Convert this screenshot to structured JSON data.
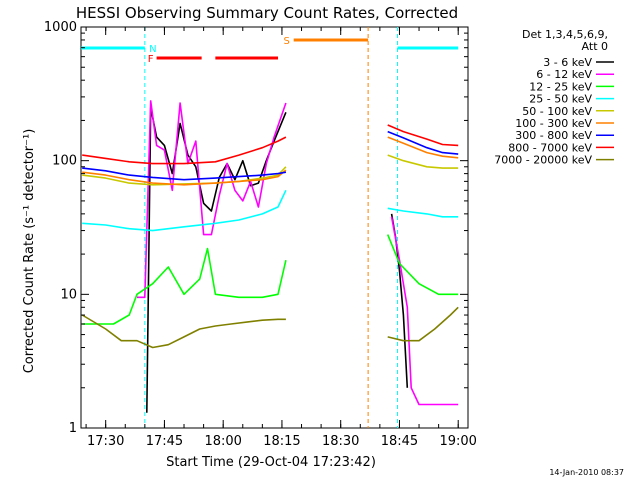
{
  "chart_data": {
    "type": "line",
    "title": "HESSI Observing Summary Count Rates, Corrected",
    "xlabel": "Start Time (29-Oct-04 17:23:42)",
    "ylabel": "Corrected Count Rate (s⁻¹ detector⁻¹)",
    "xlim": [
      "17:23:42",
      "19:02:30"
    ],
    "ylim": [
      1,
      1000
    ],
    "yscale": "log",
    "x_ticks": [
      "17:30",
      "17:45",
      "18:00",
      "18:15",
      "18:30",
      "18:45",
      "19:00"
    ],
    "y_ticks": [
      "1",
      "10",
      "100",
      "1000"
    ],
    "legend": {
      "header": [
        "Det 1,3,4,5,6,9,",
        "Att 0"
      ],
      "placement": "right"
    },
    "footer_stamp": "14-Jan-2010 08:37",
    "flags": [
      {
        "label": "F",
        "color": "#ff0000",
        "segments": [
          [
            "17:43:00",
            "17:54:30"
          ],
          [
            "17:58:00",
            "18:14:00"
          ]
        ]
      },
      {
        "label": "N",
        "color": "#00ffff",
        "segments": [
          [
            "17:23:42",
            "17:40:00"
          ],
          [
            "18:44:30",
            "19:00:00"
          ]
        ]
      },
      {
        "label": "S",
        "color": "#ff8000",
        "segments": [
          [
            "18:18:00",
            "18:37:00"
          ]
        ]
      }
    ],
    "series": [
      {
        "name": "3 - 6 keV",
        "color": "#000000",
        "points": [
          [
            "17:40:30",
            1.3
          ],
          [
            "17:41:30",
            250
          ],
          [
            "17:43",
            150
          ],
          [
            "17:45",
            130
          ],
          [
            "17:47",
            80
          ],
          [
            "17:49",
            190
          ],
          [
            "17:51",
            110
          ],
          [
            "17:53",
            90
          ],
          [
            "17:55",
            48
          ],
          [
            "17:57",
            42
          ],
          [
            "17:59",
            75
          ],
          [
            "18:01",
            95
          ],
          [
            "18:03",
            72
          ],
          [
            "18:05",
            100
          ],
          [
            "18:07",
            65
          ],
          [
            "18:09",
            68
          ],
          [
            "18:11",
            100
          ],
          [
            "18:13",
            140
          ],
          [
            "18:16",
            230
          ],
          [
            "18:43",
            40
          ],
          [
            "18:44",
            27
          ],
          [
            "18:45",
            15
          ],
          [
            "18:46",
            7
          ],
          [
            "18:47",
            2
          ]
        ]
      },
      {
        "name": "6 - 12 keV",
        "color": "#ff00ff",
        "points": [
          [
            "17:38",
            9.5
          ],
          [
            "17:40",
            9.5
          ],
          [
            "17:41:30",
            280
          ],
          [
            "17:43",
            130
          ],
          [
            "17:45",
            120
          ],
          [
            "17:47",
            60
          ],
          [
            "17:49",
            270
          ],
          [
            "17:51",
            95
          ],
          [
            "17:53",
            140
          ],
          [
            "17:55",
            28
          ],
          [
            "17:57",
            28
          ],
          [
            "17:59",
            55
          ],
          [
            "18:01",
            95
          ],
          [
            "18:03",
            60
          ],
          [
            "18:05",
            50
          ],
          [
            "18:07",
            70
          ],
          [
            "18:09",
            45
          ],
          [
            "18:11",
            95
          ],
          [
            "18:13",
            150
          ],
          [
            "18:16",
            270
          ],
          [
            "18:43",
            38
          ],
          [
            "18:45",
            18
          ],
          [
            "18:47",
            8
          ],
          [
            "18:48",
            2
          ],
          [
            "18:50",
            1.5
          ],
          [
            "18:55",
            1.5
          ],
          [
            "19:00",
            1.5
          ]
        ]
      },
      {
        "name": "12 - 25 keV",
        "color": "#00ff00",
        "points": [
          [
            "17:24",
            6
          ],
          [
            "17:32",
            6
          ],
          [
            "17:36",
            7
          ],
          [
            "17:38",
            10
          ],
          [
            "17:42",
            12
          ],
          [
            "17:46",
            16
          ],
          [
            "17:50",
            10
          ],
          [
            "17:54",
            13
          ],
          [
            "17:56",
            22
          ],
          [
            "17:58",
            10
          ],
          [
            "18:04",
            9.5
          ],
          [
            "18:10",
            9.5
          ],
          [
            "18:14",
            10
          ],
          [
            "18:16",
            18
          ],
          [
            "18:42",
            28
          ],
          [
            "18:45",
            17
          ],
          [
            "18:50",
            12
          ],
          [
            "18:55",
            10
          ],
          [
            "19:00",
            10
          ]
        ]
      },
      {
        "name": "25 - 50 keV",
        "color": "#00ffff",
        "points": [
          [
            "17:24",
            34
          ],
          [
            "17:30",
            33
          ],
          [
            "17:36",
            31
          ],
          [
            "17:42",
            30
          ],
          [
            "17:50",
            32
          ],
          [
            "17:58",
            34
          ],
          [
            "18:04",
            36
          ],
          [
            "18:10",
            40
          ],
          [
            "18:14",
            45
          ],
          [
            "18:16",
            60
          ],
          [
            "18:42",
            44
          ],
          [
            "18:46",
            42
          ],
          [
            "18:52",
            40
          ],
          [
            "18:56",
            38
          ],
          [
            "19:00",
            38
          ]
        ]
      },
      {
        "name": "50 - 100 keV",
        "color": "#c8c800",
        "points": [
          [
            "17:24",
            78
          ],
          [
            "17:30",
            74
          ],
          [
            "17:36",
            68
          ],
          [
            "17:42",
            66
          ],
          [
            "17:50",
            67
          ],
          [
            "17:58",
            68
          ],
          [
            "18:04",
            70
          ],
          [
            "18:10",
            74
          ],
          [
            "18:14",
            78
          ],
          [
            "18:16",
            90
          ],
          [
            "18:42",
            110
          ],
          [
            "18:46",
            100
          ],
          [
            "18:52",
            90
          ],
          [
            "18:56",
            88
          ],
          [
            "19:00",
            88
          ]
        ]
      },
      {
        "name": "100 - 300 keV",
        "color": "#ff8000",
        "points": [
          [
            "17:24",
            82
          ],
          [
            "17:30",
            78
          ],
          [
            "17:36",
            72
          ],
          [
            "17:42",
            68
          ],
          [
            "17:50",
            66
          ],
          [
            "17:58",
            68
          ],
          [
            "18:04",
            70
          ],
          [
            "18:10",
            72
          ],
          [
            "18:14",
            76
          ],
          [
            "18:16",
            85
          ],
          [
            "18:42",
            150
          ],
          [
            "18:46",
            135
          ],
          [
            "18:52",
            115
          ],
          [
            "18:56",
            108
          ],
          [
            "19:00",
            105
          ]
        ]
      },
      {
        "name": "300 - 800 keV",
        "color": "#0000ff",
        "points": [
          [
            "17:24",
            88
          ],
          [
            "17:30",
            84
          ],
          [
            "17:36",
            78
          ],
          [
            "17:42",
            75
          ],
          [
            "17:50",
            72
          ],
          [
            "17:58",
            74
          ],
          [
            "18:04",
            76
          ],
          [
            "18:10",
            78
          ],
          [
            "18:14",
            80
          ],
          [
            "18:16",
            82
          ],
          [
            "18:42",
            165
          ],
          [
            "18:46",
            148
          ],
          [
            "18:52",
            125
          ],
          [
            "18:56",
            115
          ],
          [
            "19:00",
            112
          ]
        ]
      },
      {
        "name": "800 - 7000 keV",
        "color": "#ff0000",
        "points": [
          [
            "17:24",
            110
          ],
          [
            "17:30",
            104
          ],
          [
            "17:36",
            98
          ],
          [
            "17:42",
            95
          ],
          [
            "17:50",
            95
          ],
          [
            "17:58",
            98
          ],
          [
            "18:04",
            110
          ],
          [
            "18:10",
            125
          ],
          [
            "18:14",
            140
          ],
          [
            "18:16",
            150
          ],
          [
            "18:42",
            185
          ],
          [
            "18:46",
            165
          ],
          [
            "18:52",
            145
          ],
          [
            "18:56",
            132
          ],
          [
            "19:00",
            130
          ]
        ]
      },
      {
        "name": "7000 - 20000 keV",
        "color": "#808000",
        "points": [
          [
            "17:24",
            7
          ],
          [
            "17:30",
            5.5
          ],
          [
            "17:34",
            4.5
          ],
          [
            "17:38",
            4.5
          ],
          [
            "17:42",
            4
          ],
          [
            "17:46",
            4.2
          ],
          [
            "17:50",
            4.8
          ],
          [
            "17:54",
            5.5
          ],
          [
            "17:58",
            5.8
          ],
          [
            "18:02",
            6
          ],
          [
            "18:06",
            6.2
          ],
          [
            "18:10",
            6.4
          ],
          [
            "18:14",
            6.5
          ],
          [
            "18:16",
            6.5
          ],
          [
            "18:42",
            4.8
          ],
          [
            "18:46",
            4.5
          ],
          [
            "18:50",
            4.5
          ],
          [
            "18:54",
            5.5
          ],
          [
            "18:58",
            7
          ],
          [
            "19:00",
            8
          ]
        ]
      }
    ]
  }
}
